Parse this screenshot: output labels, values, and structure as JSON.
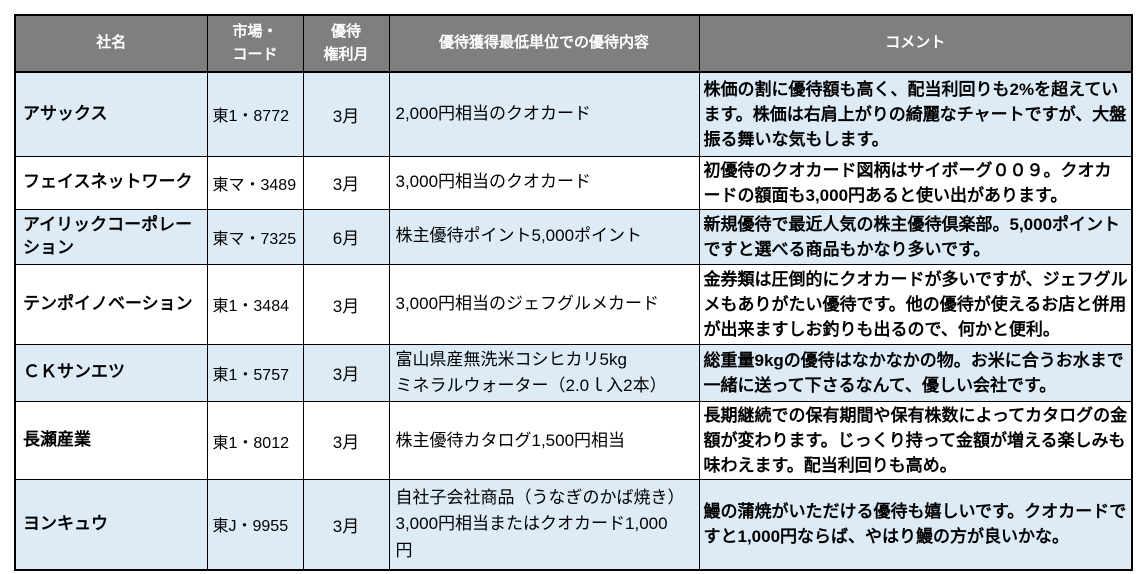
{
  "table": {
    "headers": [
      "社名",
      "市場・\nコード",
      "優待\n権利月",
      "優待獲得最低単位での優待内容",
      "コメント"
    ],
    "rows": [
      {
        "name": "アサックス",
        "market": "東1・8772",
        "month": "3月",
        "benefit": "2,000円相当のクオカード",
        "comment": "株価の割に優待額も高く、配当利回りも2%を超えています。株価は右肩上がりの綺麗なチャートですが、大盤振る舞いな気もします。"
      },
      {
        "name": "フェイスネットワーク",
        "market": "東マ・3489",
        "month": "3月",
        "benefit": "3,000円相当のクオカード",
        "comment": "初優待のクオカード図柄はサイボーグ００９。クオカードの額面も3,000円あると使い出があります。"
      },
      {
        "name": "アイリックコーポレーション",
        "market": "東マ・7325",
        "month": "6月",
        "benefit": "株主優待ポイント5,000ポイント",
        "comment": "新規優待で最近人気の株主優待倶楽部。5,000ポイントですと選べる商品もかなり多いです。"
      },
      {
        "name": "テンポイノベーション",
        "market": "東1・3484",
        "month": "3月",
        "benefit": "3,000円相当のジェフグルメカード",
        "comment": "金券類は圧倒的にクオカードが多いですが、ジェフグルメもありがたい優待です。他の優待が使えるお店と併用が出来ますしお釣りも出るので、何かと便利。"
      },
      {
        "name": "ＣＫサンエツ",
        "market": "東1・5757",
        "month": "3月",
        "benefit": "富山県産無洗米コシヒカリ5kg\nミネラルウォーター（2.0ｌ入2本）",
        "comment": "総重量9kgの優待はなかなかの物。お米に合うお水まで一緒に送って下さるなんて、優しい会社です。"
      },
      {
        "name": "長瀬産業",
        "market": "東1・8012",
        "month": "3月",
        "benefit": "株主優待カタログ1,500円相当",
        "comment": "長期継続での保有期間や保有株数によってカタログの金額が変わります。じっくり持って金額が増える楽しみも味わえます。配当利回りも高め。"
      },
      {
        "name": "ヨンキュウ",
        "market": "東J・9955",
        "month": "3月",
        "benefit": "自社子会社商品（うなぎのかば焼き）\n3,000円相当またはクオカード1,000\n円",
        "comment": "鰻の蒲焼がいただける優待も嬉しいです。クオカードですと1,000円ならば、やはり鰻の方が良いかな。"
      }
    ]
  },
  "colors": {
    "header_bg": "#7F7F7F",
    "header_text": "#FFFFFF",
    "row_alt_bg": "#DDEBF7",
    "row_bg": "#FFFFFF",
    "border": "#000000"
  }
}
